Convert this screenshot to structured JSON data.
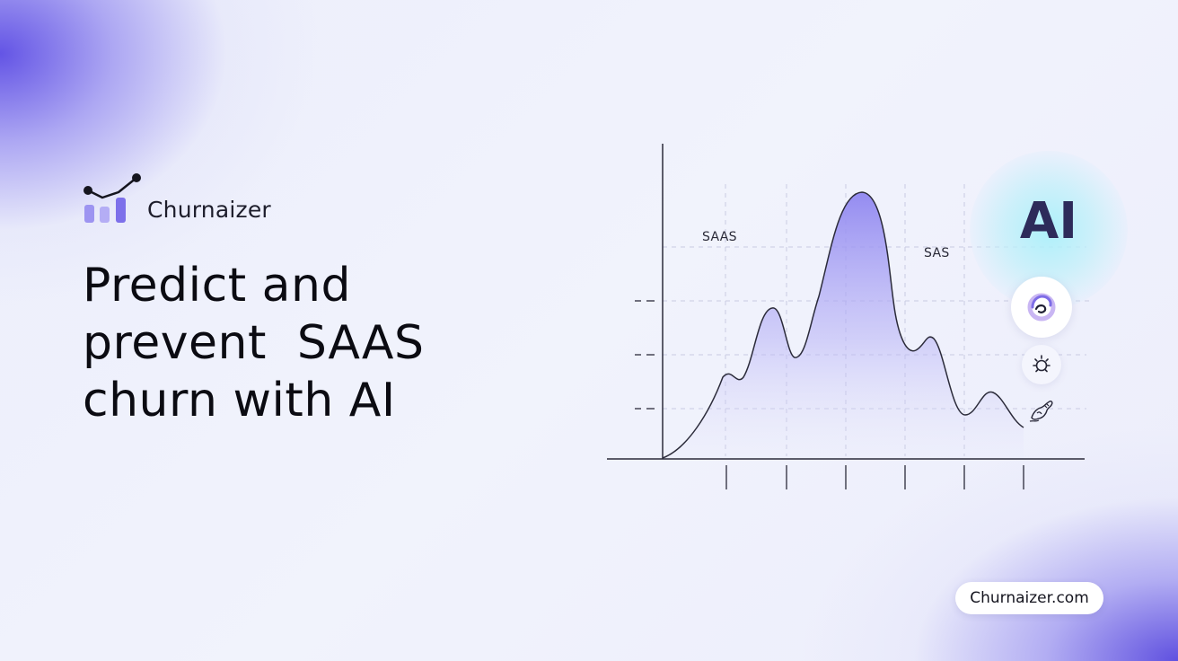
{
  "brand": {
    "name": "Churnaizer",
    "url": "Churnaizer.com"
  },
  "headline": {
    "lines": [
      "Predict and",
      "prevent  SAAS",
      "churn with AI"
    ]
  },
  "chart": {
    "label_left": "SAAS",
    "label_right": "SAS"
  },
  "ai_badge": {
    "text": "AI"
  },
  "icons": {
    "logo": "bar-chart-trend-icon",
    "circle_1": "swirl-icon",
    "circle_2": "sun-icon",
    "circle_3": "sketch-bird-icon"
  },
  "colors": {
    "accent": "#6a5ae6",
    "curve_fill": "#9d96f3",
    "ai_text": "#2d2b5a"
  }
}
